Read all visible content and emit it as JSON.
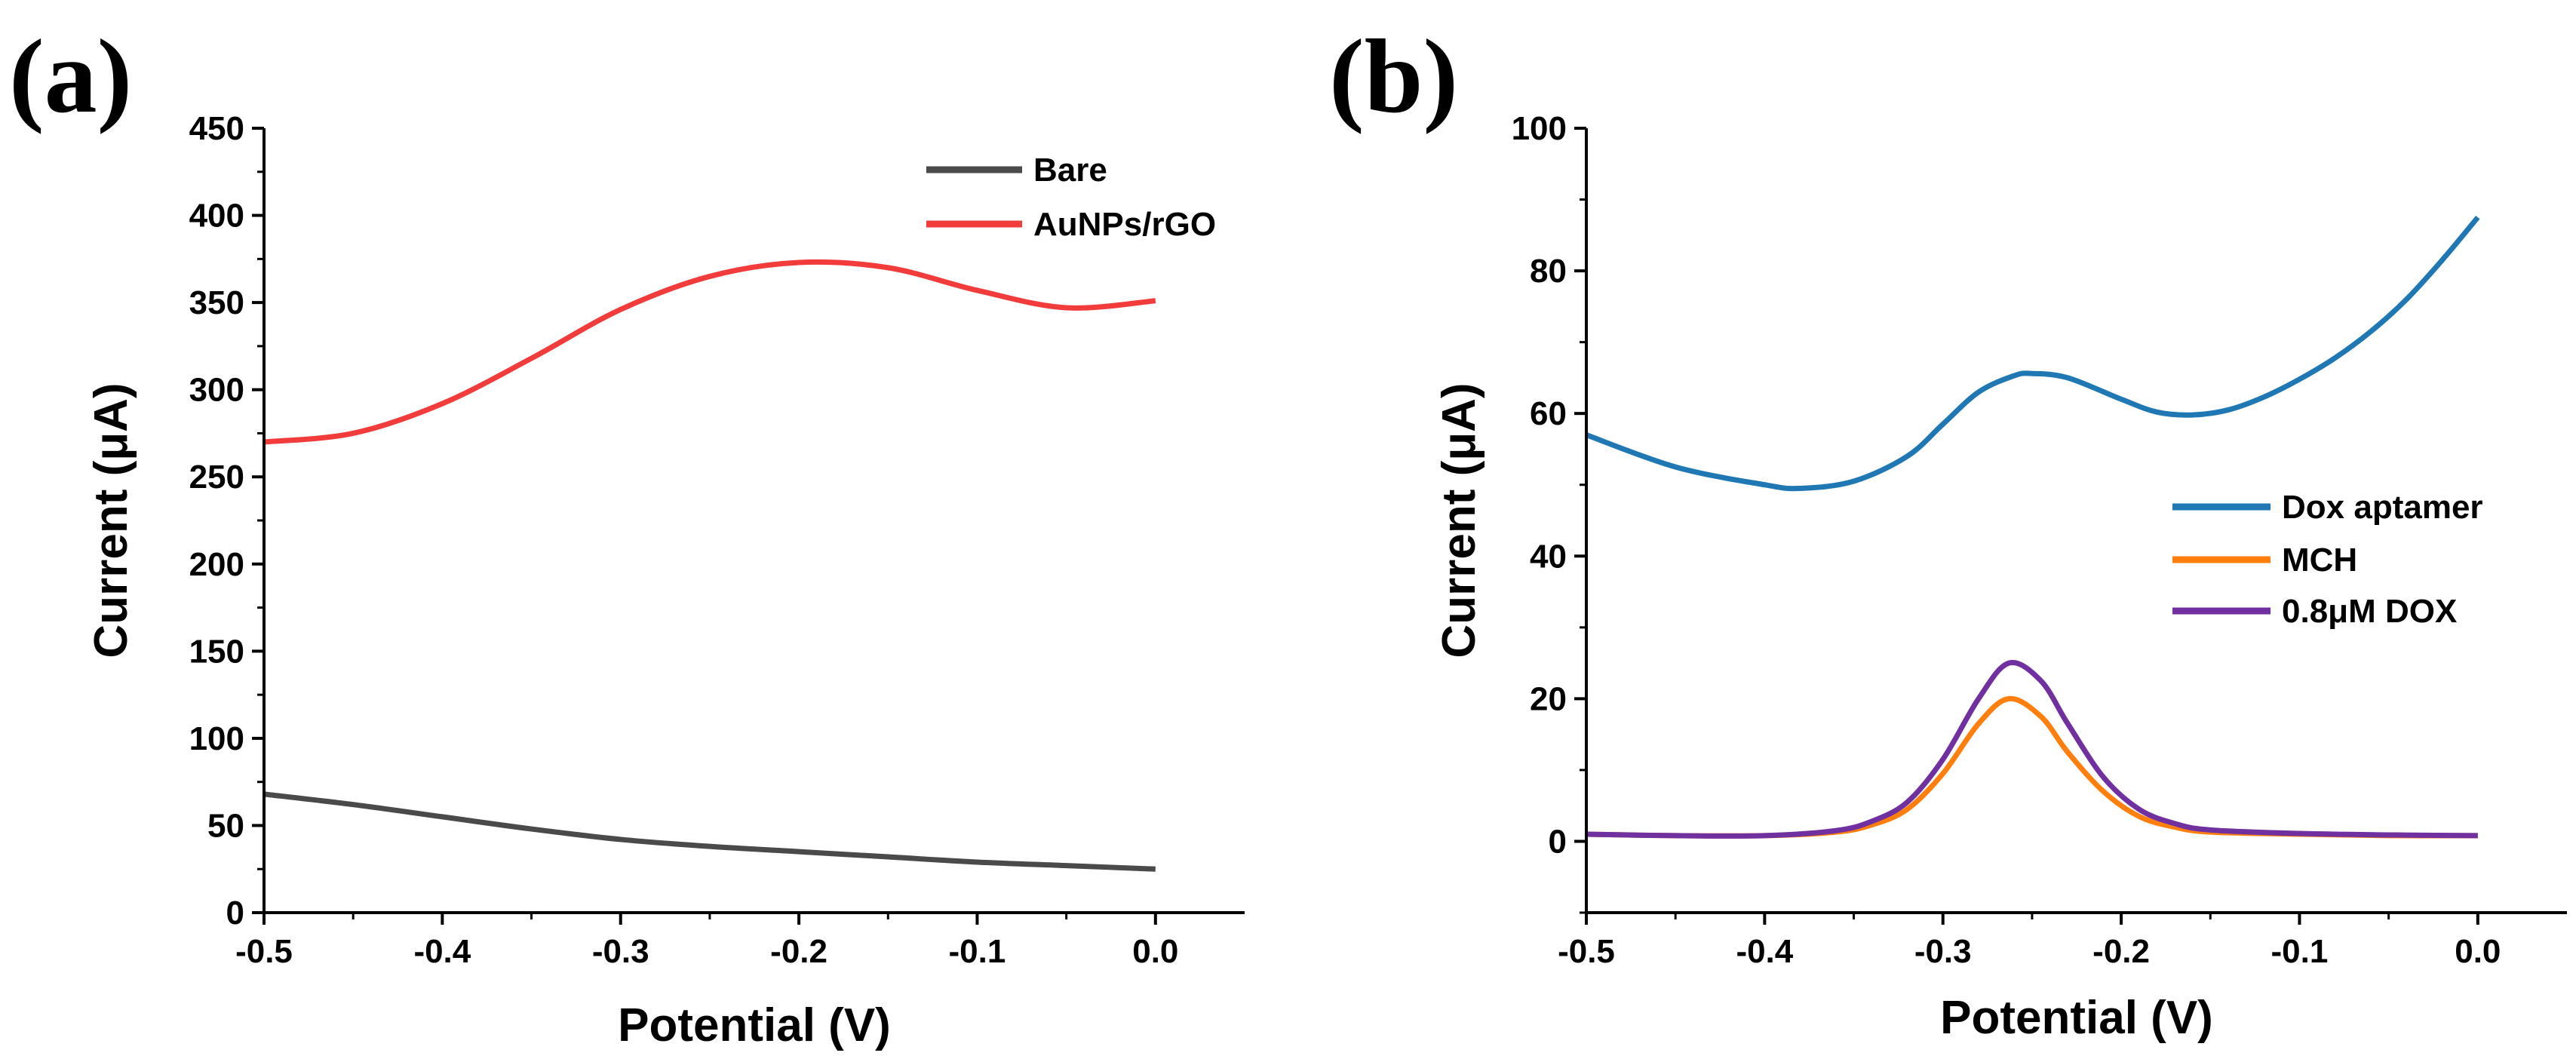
{
  "chart_data": [
    {
      "type": "line",
      "panel_label": "(a)",
      "xlabel": "Potential (V)",
      "ylabel": "Current (μA)",
      "xlim": [
        -0.5,
        0.05
      ],
      "ylim": [
        0,
        450
      ],
      "xticks": [
        "-0.5",
        "-0.4",
        "-0.3",
        "-0.2",
        "-0.1",
        "0.0"
      ],
      "xtick_values": [
        -0.5,
        -0.4,
        -0.3,
        -0.2,
        -0.1,
        0.0
      ],
      "yticks": [
        "0",
        "50",
        "100",
        "150",
        "200",
        "250",
        "300",
        "350",
        "400",
        "450"
      ],
      "ytick_values": [
        0,
        50,
        100,
        150,
        200,
        250,
        300,
        350,
        400,
        450
      ],
      "y_minor_step": 25,
      "legend_position": "top-right",
      "series": [
        {
          "name": "Bare",
          "color": "#4a4a4a",
          "x": [
            -0.5,
            -0.45,
            -0.4,
            -0.35,
            -0.3,
            -0.25,
            -0.2,
            -0.15,
            -0.1,
            -0.05,
            0.0
          ],
          "y": [
            68,
            62,
            55,
            48,
            42,
            38,
            35,
            32,
            29,
            27,
            25
          ]
        },
        {
          "name": "AuNPs/rGO",
          "color": "#f23b3b",
          "x": [
            -0.5,
            -0.45,
            -0.4,
            -0.35,
            -0.3,
            -0.25,
            -0.2,
            -0.15,
            -0.1,
            -0.05,
            0.0
          ],
          "y": [
            270,
            275,
            292,
            318,
            346,
            365,
            373,
            370,
            357,
            347,
            351
          ]
        }
      ]
    },
    {
      "type": "line",
      "panel_label": "(b)",
      "xlabel": "Potential (V)",
      "ylabel": "Current (μA)",
      "xlim": [
        -0.5,
        0.05
      ],
      "ylim": [
        -10,
        100
      ],
      "xticks": [
        "-0.5",
        "-0.4",
        "-0.3",
        "-0.2",
        "-0.1",
        "0.0"
      ],
      "xtick_values": [
        -0.5,
        -0.4,
        -0.3,
        -0.2,
        -0.1,
        0.0
      ],
      "yticks": [
        "0",
        "20",
        "40",
        "60",
        "80",
        "100"
      ],
      "ytick_values": [
        0,
        20,
        40,
        60,
        80,
        100
      ],
      "y_minor_step": 10,
      "legend_position": "right",
      "series": [
        {
          "name": "Dox aptamer",
          "color": "#1f77b4",
          "x": [
            -0.5,
            -0.45,
            -0.4,
            -0.38,
            -0.35,
            -0.32,
            -0.3,
            -0.28,
            -0.26,
            -0.25,
            -0.23,
            -0.2,
            -0.18,
            -0.16,
            -0.14,
            -0.12,
            -0.1,
            -0.08,
            -0.06,
            -0.04,
            -0.02,
            0.0
          ],
          "y": [
            57,
            52.5,
            50,
            49.5,
            50.5,
            54,
            58.5,
            63,
            65.3,
            65.6,
            65,
            62,
            60.2,
            59.8,
            60.5,
            62.3,
            64.8,
            67.8,
            71.5,
            76,
            81.5,
            87.5
          ]
        },
        {
          "name": "MCH",
          "color": "#ff7f0e",
          "x": [
            -0.5,
            -0.45,
            -0.4,
            -0.36,
            -0.34,
            -0.32,
            -0.3,
            -0.28,
            -0.263,
            -0.245,
            -0.23,
            -0.21,
            -0.19,
            -0.17,
            -0.15,
            -0.1,
            -0.05,
            0.0
          ],
          "y": [
            1,
            0.8,
            0.8,
            1.3,
            2.3,
            4.5,
            9.5,
            16.5,
            20,
            17.5,
            12.5,
            7,
            3.5,
            2,
            1.3,
            1,
            0.8,
            0.8
          ]
        },
        {
          "name": "0.8μM DOX",
          "color": "#7030a0",
          "x": [
            -0.5,
            -0.45,
            -0.4,
            -0.36,
            -0.34,
            -0.32,
            -0.3,
            -0.28,
            -0.263,
            -0.245,
            -0.23,
            -0.21,
            -0.19,
            -0.17,
            -0.15,
            -0.1,
            -0.05,
            0.0
          ],
          "y": [
            1,
            0.8,
            0.8,
            1.5,
            2.8,
            5.5,
            11.5,
            20,
            25,
            22.5,
            16.5,
            9,
            4.5,
            2.5,
            1.6,
            1.1,
            0.9,
            0.8
          ]
        }
      ]
    }
  ]
}
